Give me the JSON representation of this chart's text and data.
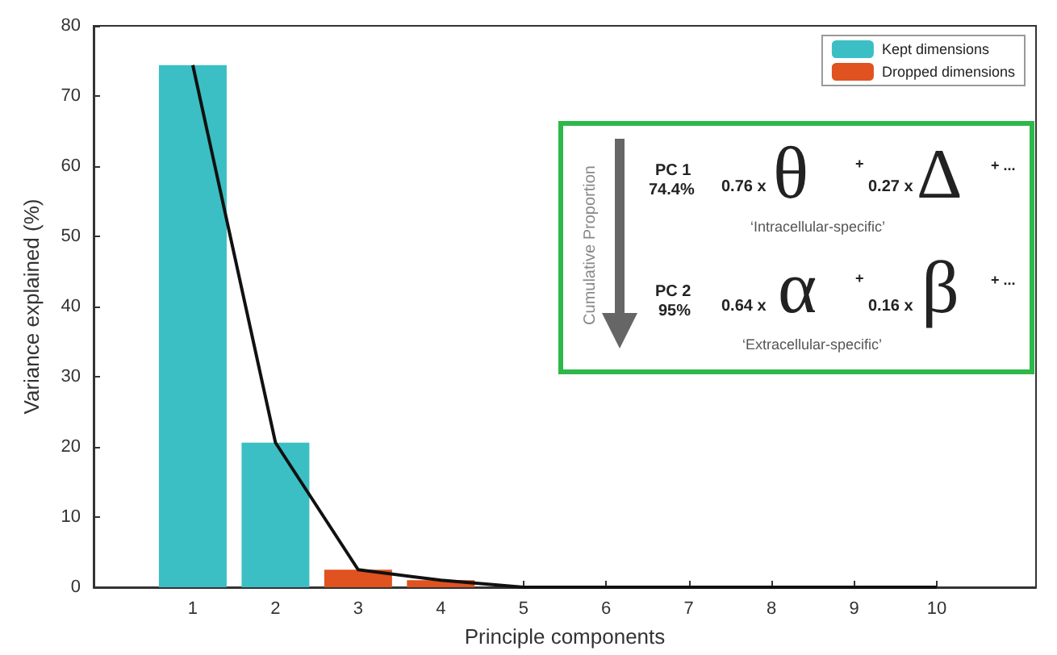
{
  "chart_data": {
    "type": "bar",
    "xlabel": "Principle components",
    "ylabel": "Variance explained (%)",
    "x": [
      1,
      2,
      3,
      4,
      5,
      6,
      7,
      8,
      9,
      10
    ],
    "series": [
      {
        "name": "Kept dimensions",
        "color": "#3bbfc4",
        "values": [
          74.4,
          20.6,
          null,
          null,
          null,
          null,
          null,
          null,
          null,
          null
        ]
      },
      {
        "name": "Dropped dimensions",
        "color": "#e0521f",
        "values": [
          null,
          null,
          2.5,
          1.0,
          0,
          0,
          0,
          0,
          0,
          0
        ]
      },
      {
        "type": "line",
        "color": "#111111",
        "values": [
          74.4,
          20.6,
          2.5,
          1.0,
          0,
          0,
          0,
          0,
          0,
          0
        ]
      }
    ],
    "xlim": [
      -0.2,
      11.2
    ],
    "xticks": [
      1,
      2,
      3,
      4,
      5,
      6,
      7,
      8,
      9,
      10
    ],
    "ylim": [
      0,
      80
    ],
    "yticks": [
      0,
      10,
      20,
      30,
      40,
      50,
      60,
      70,
      80
    ],
    "grid": false,
    "legend": "top right",
    "marker": "none",
    "line_style": "solid",
    "annotations": [
      "Cumulative Proportion",
      "PC 1",
      "74.4%",
      "0.76 x",
      "θ",
      "+",
      "0.27 x",
      "Δ",
      "+ ...",
      "‘Intracellular-specific’",
      "PC 2",
      "95%",
      "0.64 x",
      "α",
      "+",
      "0.16 x",
      "β",
      "+ ...",
      "‘Extracellular-specific’"
    ]
  }
}
